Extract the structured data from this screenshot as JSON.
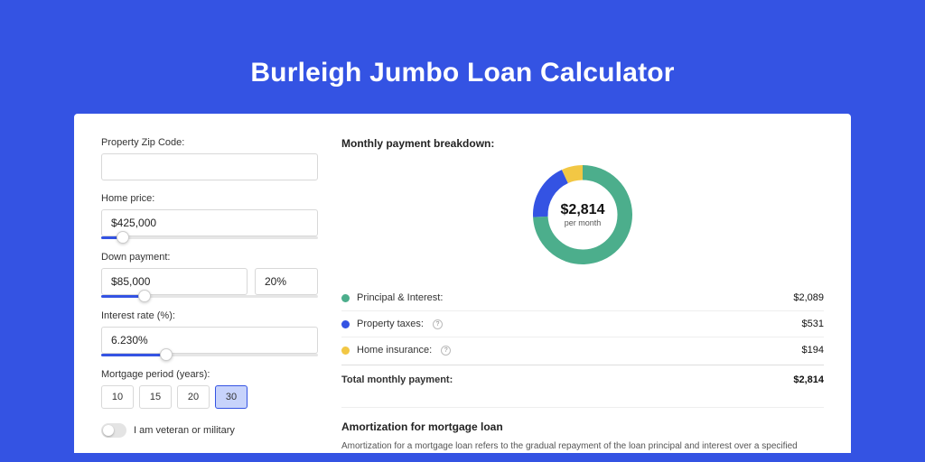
{
  "colors": {
    "outer_bg": "#3453e3",
    "shadow_bg": "#2a46c9",
    "accent": "#3453e3",
    "accent_light": "#c7d3fb",
    "track_bg": "#e6e6e6",
    "series": {
      "principal": "#4cae8c",
      "taxes": "#3453e3",
      "insurance": "#f2c744"
    }
  },
  "title": "Burleigh Jumbo Loan Calculator",
  "left": {
    "zip": {
      "label": "Property Zip Code:",
      "value": ""
    },
    "home_price": {
      "label": "Home price:",
      "value": "$425,000",
      "slider_pct": 10
    },
    "down_payment": {
      "label": "Down payment:",
      "value": "$85,000",
      "pct_value": "20%",
      "slider_pct": 20
    },
    "interest": {
      "label": "Interest rate (%):",
      "value": "6.230%",
      "slider_pct": 30
    },
    "period": {
      "label": "Mortgage period (years):",
      "options": [
        "10",
        "15",
        "20",
        "30"
      ],
      "active": "30"
    },
    "veteran": {
      "label": "I am veteran or military",
      "on": false
    }
  },
  "right": {
    "breakdown_title": "Monthly payment breakdown:",
    "donut": {
      "amount": "$2,814",
      "sub": "per month",
      "slices": [
        {
          "key": "principal",
          "pct": 74.24
        },
        {
          "key": "taxes",
          "pct": 18.87
        },
        {
          "key": "insurance",
          "pct": 6.89
        }
      ],
      "thickness_ratio": 0.3
    },
    "legend": [
      {
        "swatch": "principal",
        "label": "Principal & Interest:",
        "info": false,
        "value": "$2,089"
      },
      {
        "swatch": "taxes",
        "label": "Property taxes:",
        "info": true,
        "value": "$531"
      },
      {
        "swatch": "insurance",
        "label": "Home insurance:",
        "info": true,
        "value": "$194"
      }
    ],
    "total": {
      "label": "Total monthly payment:",
      "value": "$2,814"
    },
    "amort": {
      "title": "Amortization for mortgage loan",
      "text": "Amortization for a mortgage loan refers to the gradual repayment of the loan principal and interest over a specified"
    }
  }
}
